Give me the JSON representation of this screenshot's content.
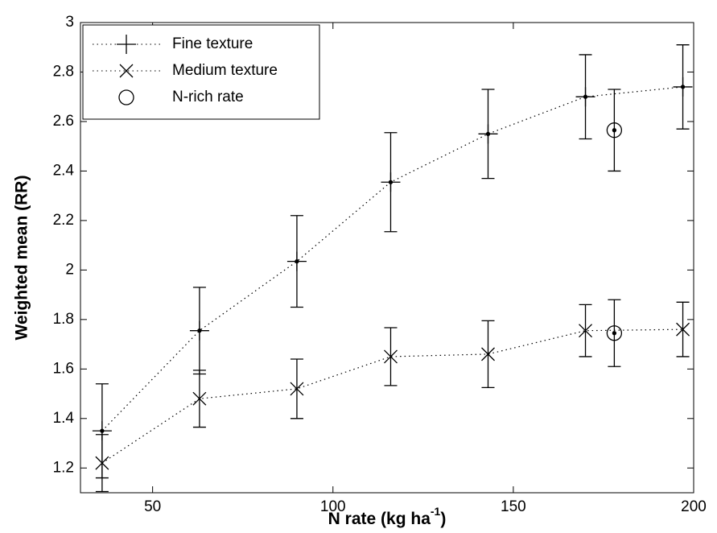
{
  "chart_data": {
    "type": "errorbar-line",
    "xlabel": [
      "N rate (kg ha",
      "-1",
      ")"
    ],
    "ylabel": "Weighted mean (RR)",
    "xlim": [
      30,
      200
    ],
    "xticks": [
      50,
      100,
      150,
      200
    ],
    "ylim": [
      1.1,
      3
    ],
    "yticks": [
      1.2,
      1.4,
      1.6,
      1.8,
      2,
      2.2,
      2.4,
      2.6,
      2.8,
      3
    ],
    "legend": "upper left",
    "series": [
      {
        "name": "Fine texture",
        "color": "#000000",
        "marker": "plus",
        "line": "dotted",
        "x": [
          36,
          63,
          90,
          116,
          143,
          170,
          197
        ],
        "values": [
          1.35,
          1.755,
          2.035,
          2.355,
          2.55,
          2.7,
          2.74
        ],
        "errors": [
          0.19,
          0.175,
          0.185,
          0.2,
          0.18,
          0.17,
          0.17
        ]
      },
      {
        "name": "Medium texture",
        "color": "#000000",
        "marker": "x",
        "line": "dotted",
        "x": [
          36,
          63,
          90,
          116,
          143,
          170,
          197
        ],
        "values": [
          1.22,
          1.48,
          1.52,
          1.65,
          1.66,
          1.755,
          1.76
        ],
        "errors": [
          0.115,
          0.115,
          0.12,
          0.117,
          0.135,
          0.105,
          0.11
        ]
      },
      {
        "name": "N-rich rate",
        "color": "#000000",
        "marker": "circle",
        "line": "none",
        "x": [
          178,
          178
        ],
        "values": [
          2.565,
          1.745
        ],
        "errors": [
          0.165,
          0.135
        ]
      }
    ]
  }
}
